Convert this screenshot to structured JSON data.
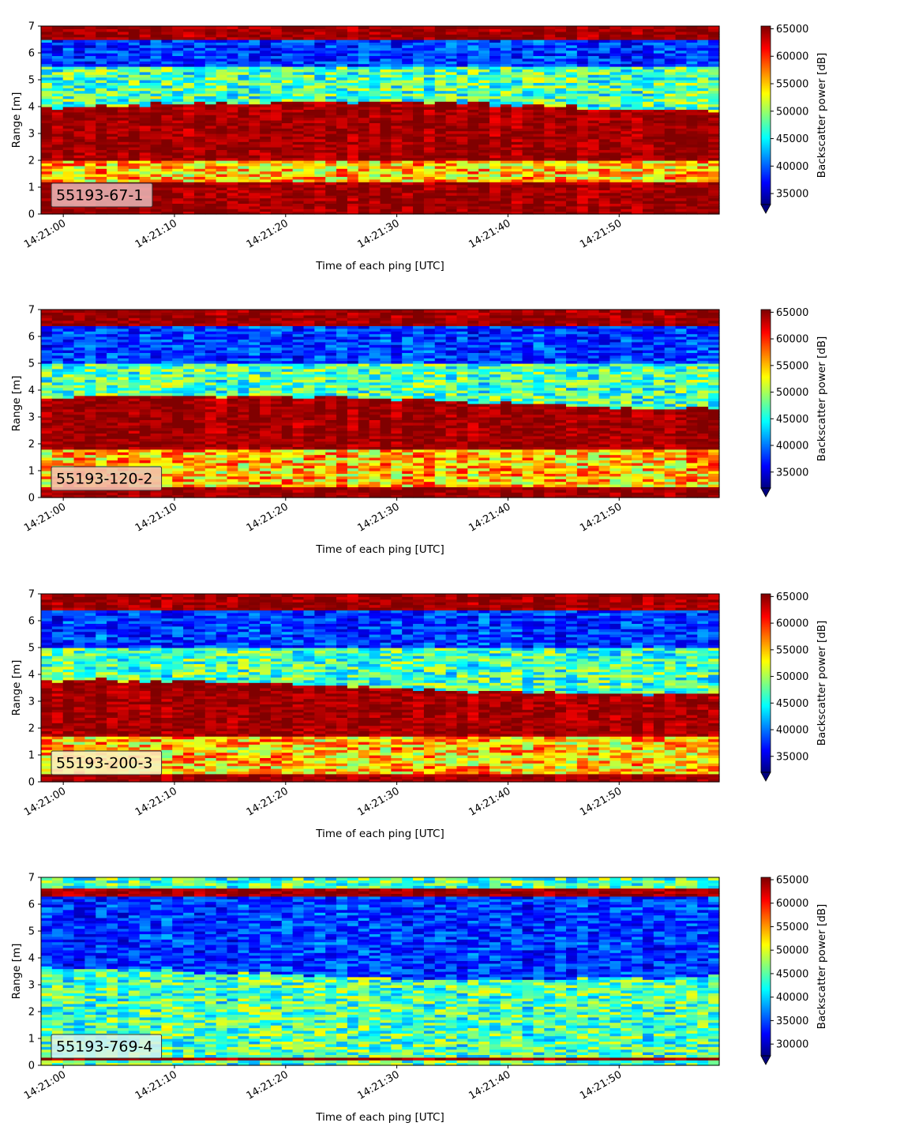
{
  "chart_data": [
    {
      "type": "heatmap",
      "label": "55193-67-1",
      "xlabel": "Time of each ping [UTC]",
      "ylabel": "Range [m]",
      "colorbar_label": "Backscatter power [dB]",
      "colormap": "jet",
      "x_range": [
        "14:20:58",
        "14:21:59"
      ],
      "ylim": [
        0,
        7
      ],
      "x_ticks": [
        "14:21:00",
        "14:21:10",
        "14:21:20",
        "14:21:30",
        "14:21:40",
        "14:21:50"
      ],
      "y_ticks": [
        "0",
        "1",
        "2",
        "3",
        "4",
        "5",
        "6",
        "7"
      ],
      "clim": [
        33000,
        65500
      ],
      "colorbar_ticks": [
        "35000",
        "40000",
        "45000",
        "50000",
        "55000",
        "60000",
        "65000"
      ],
      "colorbar_extend": "min",
      "label_box_color": "#e8b4b4",
      "bands": [
        {
          "range": [
            0,
            0.25
          ],
          "level": "high"
        },
        {
          "range": [
            0.25,
            1.2
          ],
          "level": "high"
        },
        {
          "range": [
            1.2,
            2.0
          ],
          "level": "medium-high"
        },
        {
          "range": [
            2.0,
            3.7
          ],
          "level": "high",
          "upper_edge_varies": [
            3.7,
            4.2
          ]
        },
        {
          "range": [
            3.7,
            5.5
          ],
          "level": "medium"
        },
        {
          "range": [
            5.5,
            6.5
          ],
          "level": "low"
        },
        {
          "range": [
            6.5,
            7.0
          ],
          "level": "high"
        }
      ]
    },
    {
      "type": "heatmap",
      "label": "55193-120-2",
      "xlabel": "Time of each ping [UTC]",
      "ylabel": "Range [m]",
      "colorbar_label": "Backscatter power [dB]",
      "colormap": "jet",
      "x_range": [
        "14:20:58",
        "14:21:59"
      ],
      "ylim": [
        0,
        7
      ],
      "x_ticks": [
        "14:21:00",
        "14:21:10",
        "14:21:20",
        "14:21:30",
        "14:21:40",
        "14:21:50"
      ],
      "y_ticks": [
        "0",
        "1",
        "2",
        "3",
        "4",
        "5",
        "6",
        "7"
      ],
      "clim": [
        32000,
        65500
      ],
      "colorbar_ticks": [
        "35000",
        "40000",
        "45000",
        "50000",
        "55000",
        "60000",
        "65000"
      ],
      "colorbar_extend": "min",
      "label_box_color": "#f2c0b0",
      "bands": [
        {
          "range": [
            0,
            0.4
          ],
          "level": "high"
        },
        {
          "range": [
            0.4,
            1.8
          ],
          "level": "medium-high"
        },
        {
          "range": [
            1.8,
            3.3
          ],
          "level": "high",
          "upper_edge_varies": [
            3.3,
            3.8
          ]
        },
        {
          "range": [
            3.3,
            5.0
          ],
          "level": "medium"
        },
        {
          "range": [
            5.0,
            6.4
          ],
          "level": "low"
        },
        {
          "range": [
            6.4,
            7.0
          ],
          "level": "high"
        }
      ]
    },
    {
      "type": "heatmap",
      "label": "55193-200-3",
      "xlabel": "Time of each ping [UTC]",
      "ylabel": "Range [m]",
      "colorbar_label": "Backscatter power [dB]",
      "colormap": "jet",
      "x_range": [
        "14:20:58",
        "14:21:59"
      ],
      "ylim": [
        0,
        7
      ],
      "x_ticks": [
        "14:21:00",
        "14:21:10",
        "14:21:20",
        "14:21:30",
        "14:21:40",
        "14:21:50"
      ],
      "y_ticks": [
        "0",
        "1",
        "2",
        "3",
        "4",
        "5",
        "6",
        "7"
      ],
      "clim": [
        32000,
        65500
      ],
      "colorbar_ticks": [
        "35000",
        "40000",
        "45000",
        "50000",
        "55000",
        "60000",
        "65000"
      ],
      "colorbar_extend": "min",
      "label_box_color": "#fbefc0",
      "bands": [
        {
          "range": [
            0,
            0.35
          ],
          "level": "high"
        },
        {
          "range": [
            0.35,
            1.7
          ],
          "level": "medium-high"
        },
        {
          "range": [
            1.7,
            3.3
          ],
          "level": "high",
          "upper_edge_varies": [
            3.3,
            3.8
          ]
        },
        {
          "range": [
            3.3,
            5.0
          ],
          "level": "medium"
        },
        {
          "range": [
            5.0,
            6.4
          ],
          "level": "low"
        },
        {
          "range": [
            6.4,
            7.0
          ],
          "level": "high"
        }
      ]
    },
    {
      "type": "heatmap",
      "label": "55193-769-4",
      "xlabel": "Time of each ping [UTC]",
      "ylabel": "Range [m]",
      "colorbar_label": "Backscatter power [dB]",
      "colormap": "jet",
      "x_range": [
        "14:20:58",
        "14:21:59"
      ],
      "ylim": [
        0,
        7
      ],
      "x_ticks": [
        "14:21:00",
        "14:21:10",
        "14:21:20",
        "14:21:30",
        "14:21:40",
        "14:21:50"
      ],
      "y_ticks": [
        "0",
        "1",
        "2",
        "3",
        "4",
        "5",
        "6",
        "7"
      ],
      "clim": [
        27500,
        65500
      ],
      "colorbar_ticks": [
        "30000",
        "35000",
        "40000",
        "45000",
        "50000",
        "55000",
        "60000",
        "65000"
      ],
      "colorbar_extend": "min",
      "label_box_color": "#d8f4ec",
      "bands": [
        {
          "range": [
            0,
            0.2
          ],
          "level": "medium"
        },
        {
          "range": [
            0.2,
            0.35
          ],
          "level": "high"
        },
        {
          "range": [
            0.35,
            3.2
          ],
          "level": "medium",
          "upper_edge_varies": [
            3.2,
            3.7
          ]
        },
        {
          "range": [
            3.2,
            6.3
          ],
          "level": "low"
        },
        {
          "range": [
            6.3,
            6.6
          ],
          "level": "high"
        },
        {
          "range": [
            6.6,
            7.0
          ],
          "level": "medium"
        }
      ]
    }
  ]
}
